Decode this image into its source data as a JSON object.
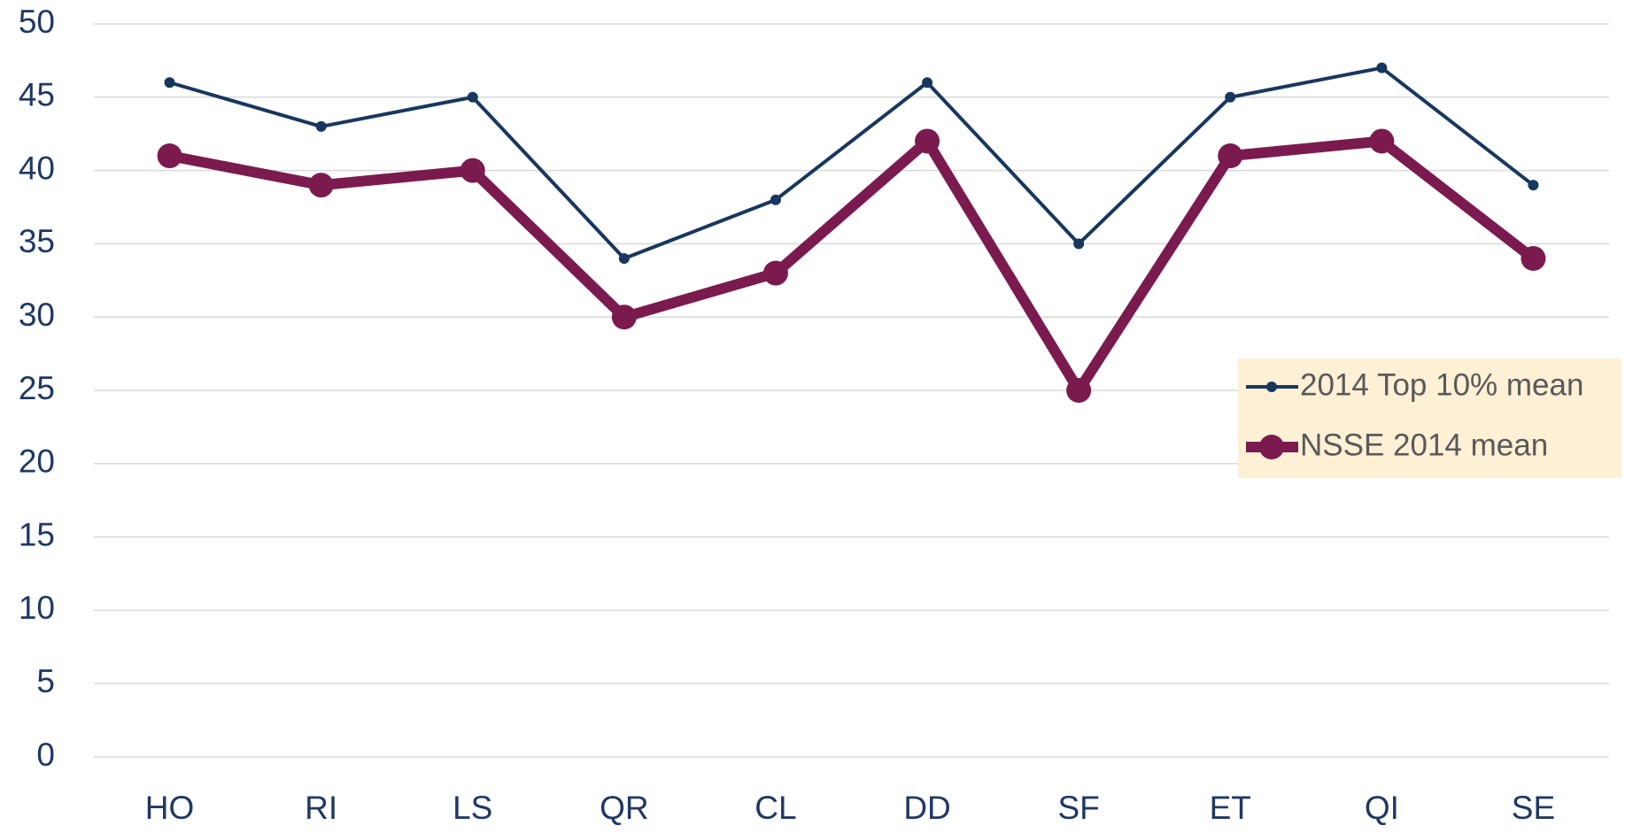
{
  "chart_data": {
    "type": "line",
    "categories": [
      "HO",
      "RI",
      "LS",
      "QR",
      "CL",
      "DD",
      "SF",
      "ET",
      "QI",
      "SE"
    ],
    "series": [
      {
        "name": "2014 Top 10% mean",
        "color": "#17375e",
        "values": [
          46,
          43,
          45,
          34,
          38,
          46,
          35,
          45,
          47,
          39
        ]
      },
      {
        "name": "NSSE 2014 mean",
        "color": "#7b1a4f",
        "values": [
          41,
          39,
          40,
          30,
          33,
          42,
          25,
          41,
          42,
          34
        ]
      }
    ],
    "ylim": [
      0,
      50
    ],
    "yticks": [
      0,
      5,
      10,
      15,
      20,
      25,
      30,
      35,
      40,
      45,
      50
    ],
    "grid": true,
    "legend": "right"
  }
}
